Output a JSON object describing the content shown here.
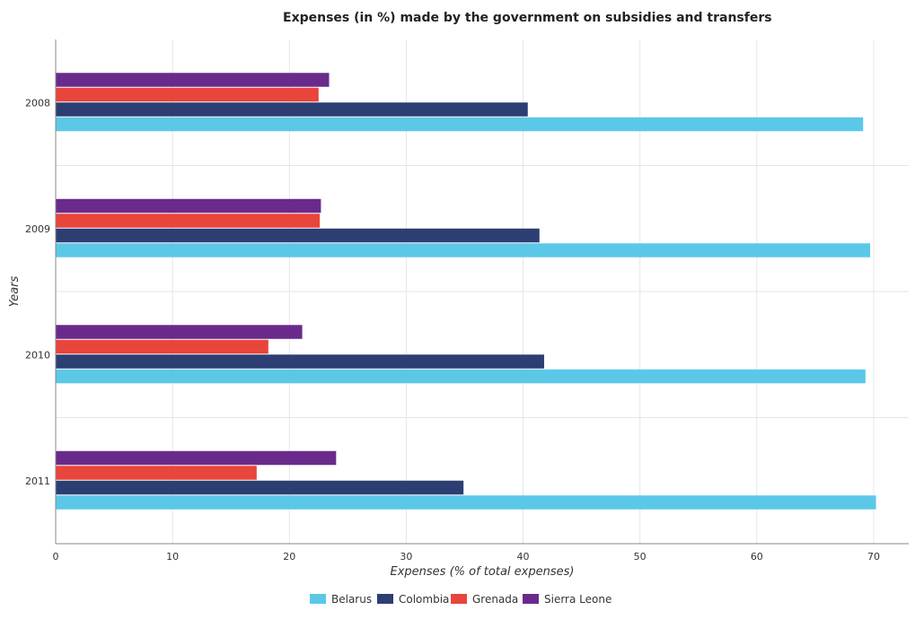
{
  "chart_data": {
    "type": "bar",
    "orientation": "horizontal",
    "title": "Expenses (in %) made by the government on subsidies and transfers",
    "xlabel": "Expenses (% of total expenses)",
    "ylabel": "Years",
    "xlim": [
      0,
      73
    ],
    "xticks": [
      0,
      10,
      20,
      30,
      40,
      50,
      60,
      70
    ],
    "grid": true,
    "legend_position": "bottom-center",
    "categories": [
      "2008",
      "2009",
      "2010",
      "2011"
    ],
    "series": [
      {
        "name": "Belarus",
        "color": "#5bc8e8",
        "values": [
          69.1,
          69.7,
          69.3,
          70.2
        ]
      },
      {
        "name": "Colombia",
        "color": "#2d3e73",
        "values": [
          40.4,
          41.4,
          41.8,
          34.9
        ]
      },
      {
        "name": "Grenada",
        "color": "#e8453c",
        "values": [
          22.5,
          22.6,
          18.2,
          17.2
        ]
      },
      {
        "name": "Sierra Leone",
        "color": "#6a2a8c",
        "values": [
          23.4,
          22.7,
          21.1,
          24.0
        ]
      }
    ]
  }
}
